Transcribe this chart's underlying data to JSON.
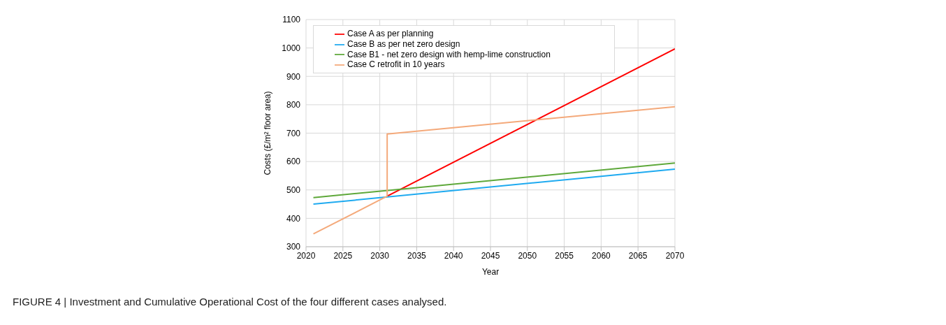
{
  "chart_data": {
    "type": "line",
    "xlabel": "Year",
    "ylabel": "Costs (£/m² floor area)",
    "xlim": [
      2020,
      2070
    ],
    "xticks": [
      2020,
      2025,
      2030,
      2035,
      2040,
      2045,
      2050,
      2055,
      2060,
      2065,
      2070
    ],
    "ylim": [
      300,
      1100
    ],
    "yticks": [
      300,
      400,
      500,
      600,
      700,
      800,
      900,
      1000,
      1100
    ],
    "grid": true,
    "legend": "top left",
    "marker": "none",
    "line_style": "solid",
    "series": [
      {
        "name": "Case A as per planning",
        "color": "#ff0000",
        "x": [
          2031,
          2070
        ],
        "values": [
          478,
          997
        ]
      },
      {
        "name": "Case B as per net zero design",
        "color": "#1eaaf0",
        "x": [
          2021,
          2070
        ],
        "values": [
          450,
          573
        ]
      },
      {
        "name": "Case B1 - net zero design with hemp-lime construction",
        "color": "#5ea83a",
        "x": [
          2021,
          2070
        ],
        "values": [
          473,
          595
        ]
      },
      {
        "name": "Case C retrofit in 10 years",
        "color": "#f4a97a",
        "x": [
          2021,
          2031,
          2031,
          2070
        ],
        "values": [
          345,
          478,
          697,
          793
        ]
      }
    ],
    "annotations": [
      "FIGURE 4 | Investment and Cumulative Operational Cost of the four different cases analysed."
    ]
  }
}
